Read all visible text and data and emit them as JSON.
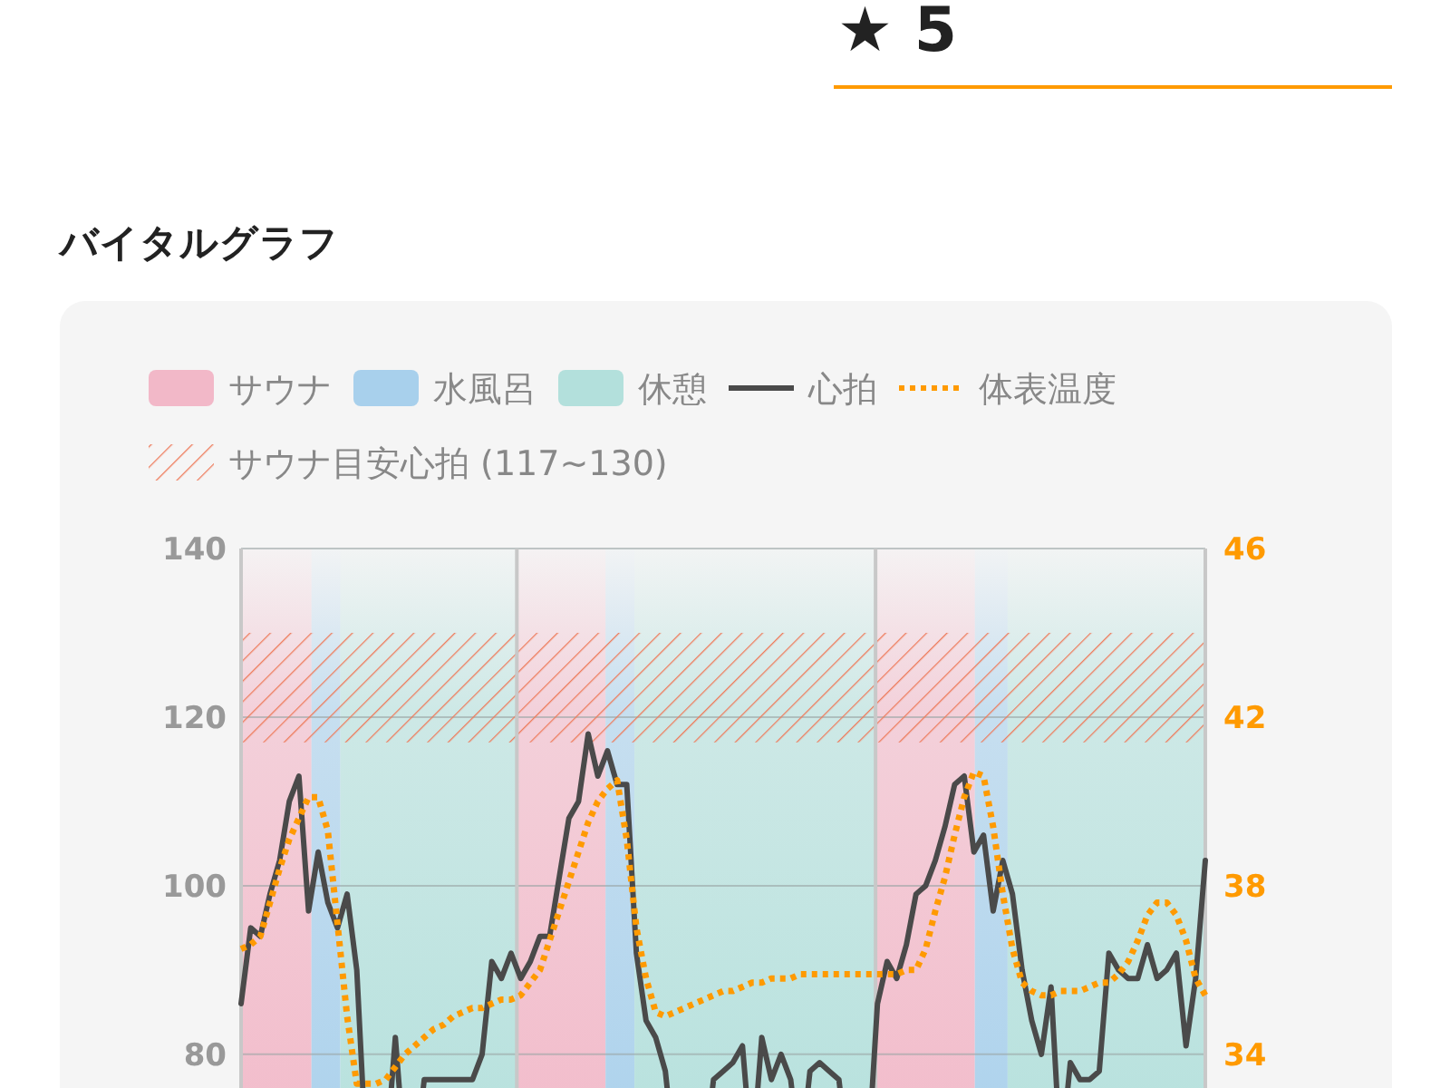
{
  "chart_data": {
    "type": "line",
    "title": "バイタルグラフ",
    "annotations": [
      "★ 5",
      "サウナ",
      "水風呂",
      "休憩"
    ],
    "categories": [
      null,
      null,
      null,
      null,
      null,
      null,
      null,
      null,
      null,
      null,
      null,
      null,
      null,
      null,
      null,
      null,
      null,
      null,
      null,
      null,
      null,
      null,
      null,
      null,
      null,
      null,
      null,
      null,
      null,
      null,
      null,
      null,
      null,
      null,
      null,
      null,
      null,
      null,
      null,
      null,
      null,
      null,
      null,
      null,
      null,
      null,
      null,
      null,
      null,
      null,
      null,
      null,
      null,
      null,
      null,
      null,
      null,
      null,
      null,
      null,
      null,
      null,
      null,
      null,
      null,
      null,
      null,
      null,
      null,
      null,
      null,
      null,
      null,
      null,
      null,
      null,
      null,
      null,
      null,
      null,
      null,
      null,
      null,
      null,
      null,
      null,
      null,
      null,
      null,
      null,
      null,
      null,
      null,
      null,
      null,
      null,
      null,
      null,
      null,
      null,
      null
    ],
    "ylim": [
      76,
      140
    ],
    "yticks": [
      80,
      100,
      120,
      140
    ],
    "y2lim": [
      33.2,
      46
    ],
    "y2ticks": [
      34,
      38,
      42,
      46
    ],
    "grid": "y",
    "legend": "top",
    "bands": [
      {
        "axis": "y",
        "from": 117,
        "to": 130,
        "label": "サウナ目安心拍 (117~130)",
        "color": "#ee7c5c"
      }
    ],
    "series": [
      {
        "name": "心拍",
        "color": "#4a4a4a",
        "line_style": "solid",
        "values": [
          86,
          95,
          94,
          99,
          103,
          110,
          113,
          97,
          104,
          98,
          95,
          99,
          90,
          null,
          null,
          null,
          82,
          null,
          null,
          77,
          77,
          77,
          77,
          77,
          77,
          80,
          91,
          89,
          92,
          89,
          91,
          94,
          94,
          101,
          108,
          110,
          118,
          113,
          116,
          112,
          112,
          92,
          84,
          82,
          78,
          null,
          null,
          null,
          null,
          77,
          78,
          79,
          81,
          null,
          82,
          77,
          80,
          77,
          null,
          78,
          79,
          78,
          77,
          null,
          null,
          null,
          86,
          91,
          89,
          93,
          99,
          100,
          103,
          107,
          112,
          113,
          104,
          106,
          97,
          103,
          99,
          90,
          84,
          80,
          88,
          null,
          79,
          77,
          77,
          78,
          92,
          90,
          89,
          89,
          93,
          89,
          90,
          92,
          81,
          89,
          103
        ]
      },
      {
        "name": "体表温度",
        "color": "#ff9a00",
        "line_style": "dotted",
        "axis": "y2",
        "values": [
          36.5,
          36.6,
          36.8,
          37.6,
          38.4,
          39.1,
          39.6,
          40.1,
          40.1,
          39.3,
          37.1,
          34.9,
          33.3,
          33.3,
          33.3,
          33.4,
          33.7,
          34.0,
          34.2,
          34.4,
          34.6,
          34.7,
          34.9,
          35.0,
          35.1,
          35.1,
          35.2,
          35.3,
          35.3,
          35.4,
          35.7,
          36.0,
          36.7,
          37.4,
          38.1,
          38.8,
          39.5,
          40.0,
          40.3,
          40.5,
          39.1,
          37.0,
          35.8,
          35.0,
          34.9,
          35.0,
          35.1,
          35.2,
          35.3,
          35.4,
          35.5,
          35.5,
          35.6,
          35.7,
          35.7,
          35.8,
          35.8,
          35.8,
          35.9,
          35.9,
          35.9,
          35.9,
          35.9,
          35.9,
          35.9,
          35.9,
          35.9,
          35.9,
          35.9,
          36.0,
          36.0,
          36.5,
          37.4,
          38.2,
          39.2,
          40.1,
          40.7,
          40.6,
          39.4,
          37.8,
          36.5,
          35.7,
          35.5,
          35.4,
          35.4,
          35.5,
          35.5,
          35.5,
          35.6,
          35.7,
          35.7,
          35.9,
          36.2,
          36.7,
          37.3,
          37.6,
          37.6,
          37.3,
          36.7,
          35.8,
          35.4
        ]
      }
    ]
  }
}
